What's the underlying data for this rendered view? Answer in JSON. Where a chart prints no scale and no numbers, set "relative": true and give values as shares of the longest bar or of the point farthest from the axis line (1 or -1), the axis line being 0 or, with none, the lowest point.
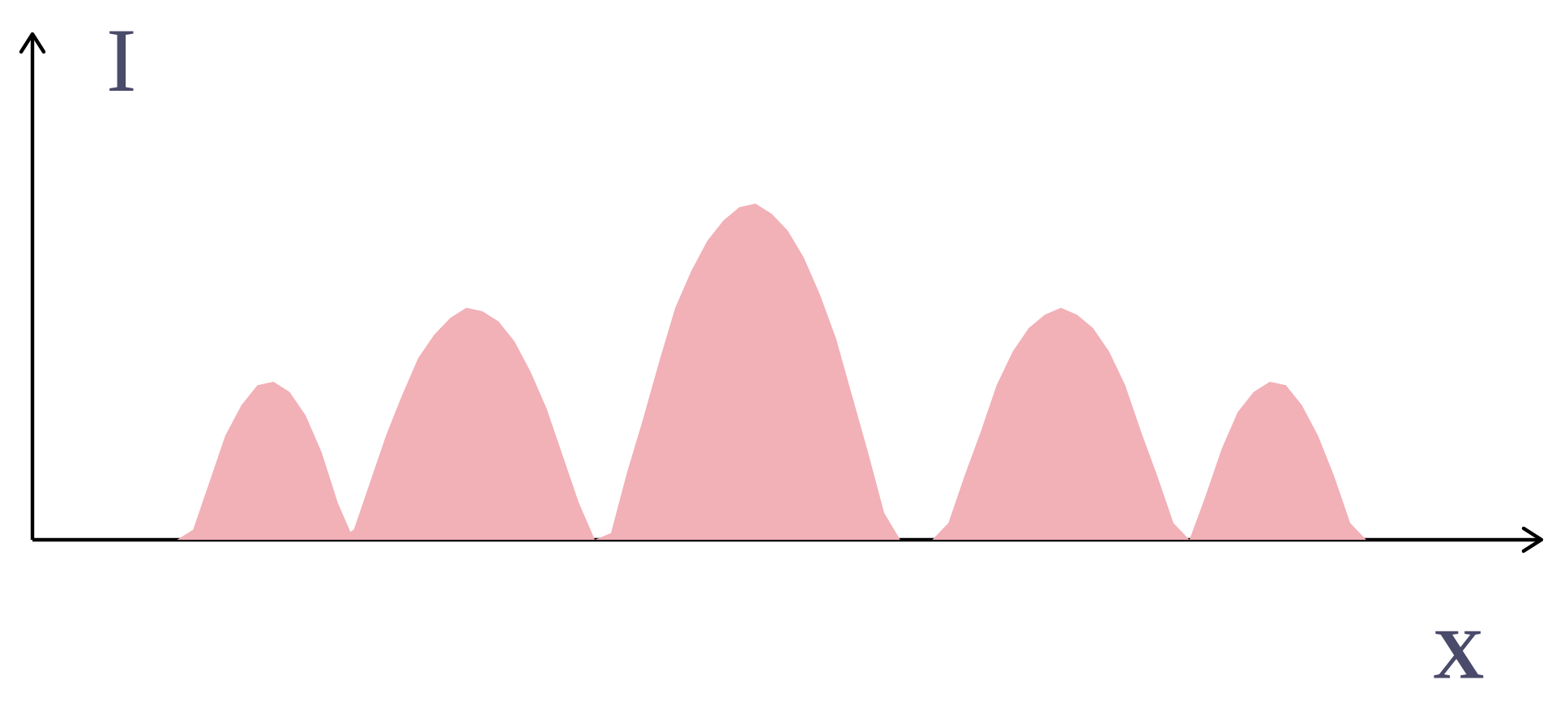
{
  "chart_data": {
    "type": "area",
    "relative": true,
    "xlabel": "X",
    "ylabel": "I",
    "categories": [
      null,
      null,
      null,
      null,
      null,
      null,
      null,
      null,
      null,
      null,
      null,
      null,
      null,
      null,
      null,
      null,
      null,
      null,
      null,
      null,
      null,
      null,
      null,
      null,
      null,
      null,
      null,
      null,
      null,
      null,
      null,
      null,
      null,
      null,
      null,
      null,
      null,
      null,
      null,
      null,
      null,
      null,
      null,
      null,
      null,
      null,
      null,
      null,
      null,
      null,
      null,
      null,
      null,
      null,
      null,
      null,
      null,
      null,
      null,
      null,
      null,
      null,
      null,
      null,
      null,
      null,
      null,
      null,
      null,
      null,
      null,
      null,
      null,
      null,
      null,
      null,
      null,
      null,
      null,
      null,
      null,
      null,
      null,
      null,
      null,
      null,
      null,
      null,
      null,
      null,
      null,
      null,
      null,
      null
    ],
    "series": [
      {
        "color": "#f2b0b7",
        "values": [
          null,
          null,
          null,
          null,
          null,
          null,
          null,
          null,
          null,
          0,
          0.03,
          0.17,
          0.31,
          0.4,
          0.46,
          0.47,
          0.44,
          0.37,
          0.26,
          0.11,
          0,
          null,
          null,
          null,
          null,
          null,
          null,
          null,
          null,
          null,
          null,
          null,
          null,
          null,
          null,
          null,
          null,
          null,
          null,
          null,
          null,
          null,
          null,
          null,
          null,
          null,
          null,
          null,
          null,
          null,
          null,
          null,
          null,
          null,
          null,
          null,
          null,
          null,
          null,
          null,
          null,
          null,
          null,
          null,
          null,
          null,
          null,
          null,
          null,
          null,
          null,
          null,
          null,
          null,
          null,
          null,
          null,
          null,
          null,
          null,
          null,
          null,
          null,
          null,
          null,
          null,
          null,
          null,
          null,
          null,
          null,
          null,
          null,
          null
        ]
      },
      {
        "color": "#f2b0b7",
        "values": [
          null,
          null,
          null,
          null,
          null,
          null,
          null,
          null,
          null,
          null,
          null,
          null,
          null,
          null,
          null,
          null,
          null,
          null,
          null,
          0,
          0.03,
          0.17,
          0.31,
          0.43,
          0.54,
          0.61,
          0.66,
          0.69,
          0.68,
          0.65,
          0.59,
          0.5,
          0.39,
          0.25,
          0.11,
          0,
          null,
          null,
          null,
          null,
          null,
          null,
          null,
          null,
          null,
          null,
          null,
          null,
          null,
          null,
          null,
          null,
          null,
          null,
          null,
          null,
          null,
          null,
          null,
          null,
          null,
          null,
          null,
          null,
          null,
          null,
          null,
          null,
          null,
          null,
          null,
          null,
          null,
          null,
          null,
          null,
          null,
          null,
          null,
          null,
          null,
          null,
          null,
          null,
          null,
          null,
          null,
          null,
          null,
          null,
          null,
          null,
          null,
          null
        ]
      },
      {
        "color": "#f2b0b7",
        "values": [
          null,
          null,
          null,
          null,
          null,
          null,
          null,
          null,
          null,
          null,
          null,
          null,
          null,
          null,
          null,
          null,
          null,
          null,
          null,
          null,
          null,
          null,
          null,
          null,
          null,
          null,
          null,
          null,
          null,
          null,
          null,
          null,
          null,
          null,
          null,
          0,
          0.02,
          0.2,
          0.36,
          0.53,
          0.69,
          0.8,
          0.89,
          0.95,
          0.99,
          1,
          0.97,
          0.92,
          0.84,
          0.73,
          0.6,
          0.43,
          0.26,
          0.08,
          0,
          null,
          null,
          null,
          null,
          null,
          null,
          null,
          null,
          null,
          null,
          null,
          null,
          null,
          null,
          null,
          null,
          null,
          null,
          null,
          null,
          null,
          null,
          null,
          null,
          null,
          null,
          null,
          null,
          null,
          null,
          null,
          null,
          null,
          null,
          null,
          null,
          null,
          null,
          null
        ]
      },
      {
        "color": "#f2b0b7",
        "values": [
          null,
          null,
          null,
          null,
          null,
          null,
          null,
          null,
          null,
          null,
          null,
          null,
          null,
          null,
          null,
          null,
          null,
          null,
          null,
          null,
          null,
          null,
          null,
          null,
          null,
          null,
          null,
          null,
          null,
          null,
          null,
          null,
          null,
          null,
          null,
          null,
          null,
          null,
          null,
          null,
          null,
          null,
          null,
          null,
          null,
          null,
          null,
          null,
          null,
          null,
          null,
          null,
          null,
          null,
          null,
          null,
          0,
          0.05,
          0.19,
          0.32,
          0.46,
          0.56,
          0.63,
          0.67,
          0.69,
          0.67,
          0.63,
          0.56,
          0.46,
          0.32,
          0.19,
          0.05,
          0,
          null,
          null,
          null,
          null,
          null,
          null,
          null,
          null,
          null,
          null,
          null,
          null,
          null,
          null,
          null,
          null,
          null,
          null,
          null,
          null,
          null
        ]
      },
      {
        "color": "#f2b0b7",
        "values": [
          null,
          null,
          null,
          null,
          null,
          null,
          null,
          null,
          null,
          null,
          null,
          null,
          null,
          null,
          null,
          null,
          null,
          null,
          null,
          null,
          null,
          null,
          null,
          null,
          null,
          null,
          null,
          null,
          null,
          null,
          null,
          null,
          null,
          null,
          null,
          null,
          null,
          null,
          null,
          null,
          null,
          null,
          null,
          null,
          null,
          null,
          null,
          null,
          null,
          null,
          null,
          null,
          null,
          null,
          null,
          null,
          null,
          null,
          null,
          null,
          null,
          null,
          null,
          null,
          null,
          null,
          null,
          null,
          null,
          null,
          null,
          null,
          0,
          0.13,
          0.27,
          0.38,
          0.44,
          0.47,
          0.46,
          0.4,
          0.31,
          0.19,
          0.05,
          0,
          null,
          null,
          null,
          null,
          null,
          null,
          null,
          null,
          null,
          null
        ]
      }
    ]
  }
}
